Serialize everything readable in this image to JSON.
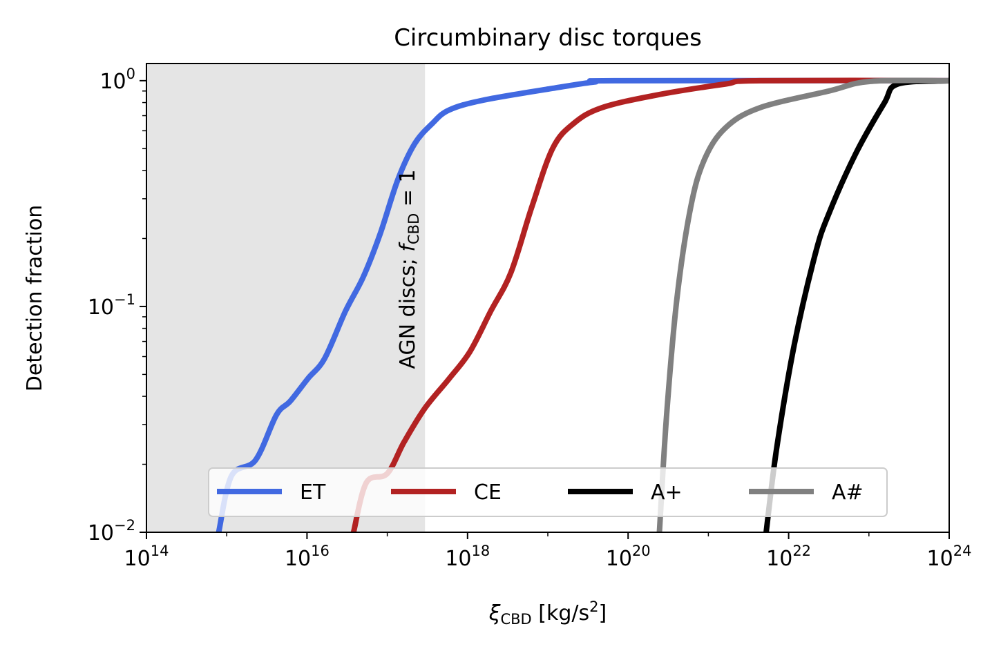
{
  "chart_data": {
    "type": "line",
    "title": "Circumbinary disc torques",
    "xlabel": {
      "symbol": "ξ",
      "sub": "CBD",
      "unit_pre": " [kg/s",
      "unit_sup": "2",
      "unit_post": "]"
    },
    "ylabel": "Detection fraction",
    "xscale": "log",
    "yscale": "log",
    "xlim_log10": [
      14,
      24
    ],
    "ylim_log10": [
      -2,
      0.076
    ],
    "x_ticks": [
      {
        "base": "10",
        "exp": "14"
      },
      {
        "base": "10",
        "exp": "16"
      },
      {
        "base": "10",
        "exp": "18"
      },
      {
        "base": "10",
        "exp": "20"
      },
      {
        "base": "10",
        "exp": "22"
      },
      {
        "base": "10",
        "exp": "24"
      }
    ],
    "x_tick_log10": [
      14,
      16,
      18,
      20,
      22,
      24
    ],
    "y_ticks": [
      {
        "base": "10",
        "exp": "0"
      },
      {
        "base": "10",
        "exp": "−1"
      },
      {
        "base": "10",
        "exp": "−2"
      }
    ],
    "y_tick_log10": [
      0,
      -1,
      -2
    ],
    "shaded_region": {
      "x_log10": [
        14,
        17.47
      ],
      "color": "#e5e5e5",
      "label_text": "AGN discs; ",
      "label_f": "f",
      "label_sub": "CBD",
      "label_post": " = 1"
    },
    "legend": {
      "placement": "lower-center",
      "ncol": 4
    },
    "series": [
      {
        "name": "ET",
        "color": "#4169e1",
        "x_log10": [
          14.9,
          15.06,
          15.36,
          15.62,
          15.79,
          16.01,
          16.22,
          16.48,
          16.7,
          16.91,
          17.13,
          17.34,
          17.56,
          17.77,
          18.2,
          19.06,
          19.58,
          19.92,
          24
        ],
        "y_log10": [
          -2.0,
          -1.75,
          -1.68,
          -1.48,
          -1.42,
          -1.32,
          -1.23,
          -1.02,
          -0.87,
          -0.68,
          -0.44,
          -0.28,
          -0.19,
          -0.13,
          -0.086,
          -0.034,
          -0.006,
          0,
          0
        ]
      },
      {
        "name": "CE",
        "color": "#b22222",
        "x_log10": [
          16.58,
          16.74,
          17.0,
          17.21,
          17.47,
          17.77,
          18.03,
          18.29,
          18.54,
          18.8,
          19.06,
          19.32,
          19.67,
          20.35,
          21.21,
          21.64,
          24
        ],
        "y_log10": [
          -2.0,
          -1.78,
          -1.74,
          -1.6,
          -1.45,
          -1.32,
          -1.2,
          -1.02,
          -0.85,
          -0.56,
          -0.3,
          -0.19,
          -0.12,
          -0.064,
          -0.015,
          0,
          0
        ]
      },
      {
        "name": "A+",
        "color": "#000000",
        "x_log10": [
          21.72,
          21.85,
          22.07,
          22.33,
          22.5,
          22.84,
          23.19,
          23.36,
          24
        ],
        "y_log10": [
          -2.0,
          -1.63,
          -1.17,
          -0.77,
          -0.59,
          -0.32,
          -0.1,
          -0.015,
          0
        ]
      },
      {
        "name": "A#",
        "color": "#808080",
        "x_log10": [
          20.39,
          20.48,
          20.61,
          20.78,
          20.95,
          21.21,
          21.64,
          22.5,
          23.02,
          24
        ],
        "y_log10": [
          -2.0,
          -1.48,
          -0.96,
          -0.56,
          -0.35,
          -0.21,
          -0.12,
          -0.046,
          -0.003,
          0
        ]
      }
    ]
  }
}
